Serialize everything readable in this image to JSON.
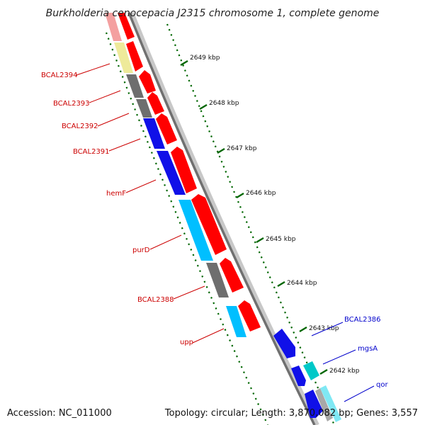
{
  "title": "Burkholderia cenocepacia J2315 chromosome 1, complete genome",
  "accession": "Accession: NC_011000",
  "topology": "Topology: circular; Length: 3,870,082 bp; Genes: 3,557",
  "ticks": [
    {
      "label": "2649 kbp"
    },
    {
      "label": "2648 kbp"
    },
    {
      "label": "2647 kbp"
    },
    {
      "label": "2646 kbp"
    },
    {
      "label": "2645 kbp"
    },
    {
      "label": "2644 kbp"
    },
    {
      "label": "2643 kbp"
    },
    {
      "label": "2642 kbp"
    }
  ],
  "genes_left": [
    {
      "label": "BCAL2394"
    },
    {
      "label": "BCAL2393"
    },
    {
      "label": "BCAL2392"
    },
    {
      "label": "BCAL2391"
    },
    {
      "label": "hemF"
    },
    {
      "label": "purD"
    },
    {
      "label": "BCAL2388"
    },
    {
      "label": "upp"
    }
  ],
  "genes_right": [
    {
      "label": "BCAL2386"
    },
    {
      "label": "mgsA"
    },
    {
      "label": "qor"
    }
  ],
  "colors": {
    "left_label": "#cc0000",
    "right_label": "#0000cc",
    "tick": "#006600",
    "backbone": "#777777",
    "red": "#ff0000",
    "blue": "#0000ee",
    "cyan": "#00bfff",
    "teal": "#00c8c8",
    "gray": "#6e6e6e",
    "yellow": "#eeea9a",
    "pink": "#f4a0a0"
  }
}
